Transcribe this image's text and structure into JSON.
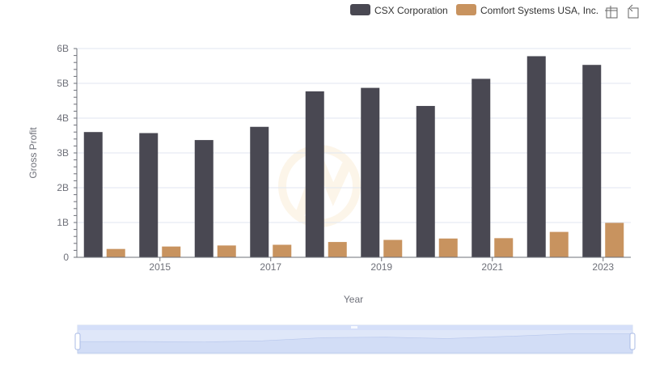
{
  "chart_data": {
    "type": "bar",
    "title": "",
    "xlabel": "Year",
    "ylabel": "Gross Profit",
    "x": [
      2014,
      2015,
      2016,
      2017,
      2018,
      2019,
      2020,
      2021,
      2022,
      2023
    ],
    "x_tick_labels": [
      "2015",
      "2017",
      "2019",
      "2021",
      "2023"
    ],
    "y_tick_labels": [
      "0",
      "1B",
      "2B",
      "3B",
      "4B",
      "5B",
      "6B"
    ],
    "ylim": [
      0,
      6000000000
    ],
    "grid": true,
    "legend_position": "top-right",
    "series": [
      {
        "name": "CSX Corporation",
        "color": "#494852",
        "values": [
          3600000000,
          3570000000,
          3370000000,
          3750000000,
          4770000000,
          4870000000,
          4350000000,
          5130000000,
          5780000000,
          5530000000
        ]
      },
      {
        "name": "Comfort Systems USA, Inc.",
        "color": "#c8935f",
        "values": [
          240000000,
          310000000,
          340000000,
          360000000,
          440000000,
          500000000,
          540000000,
          550000000,
          730000000,
          990000000
        ]
      }
    ]
  },
  "toolbox": {
    "zoom_icon": "zoom-select-icon",
    "restore_icon": "restore-icon"
  },
  "slider": {
    "accent_color": "#d5dff9"
  }
}
